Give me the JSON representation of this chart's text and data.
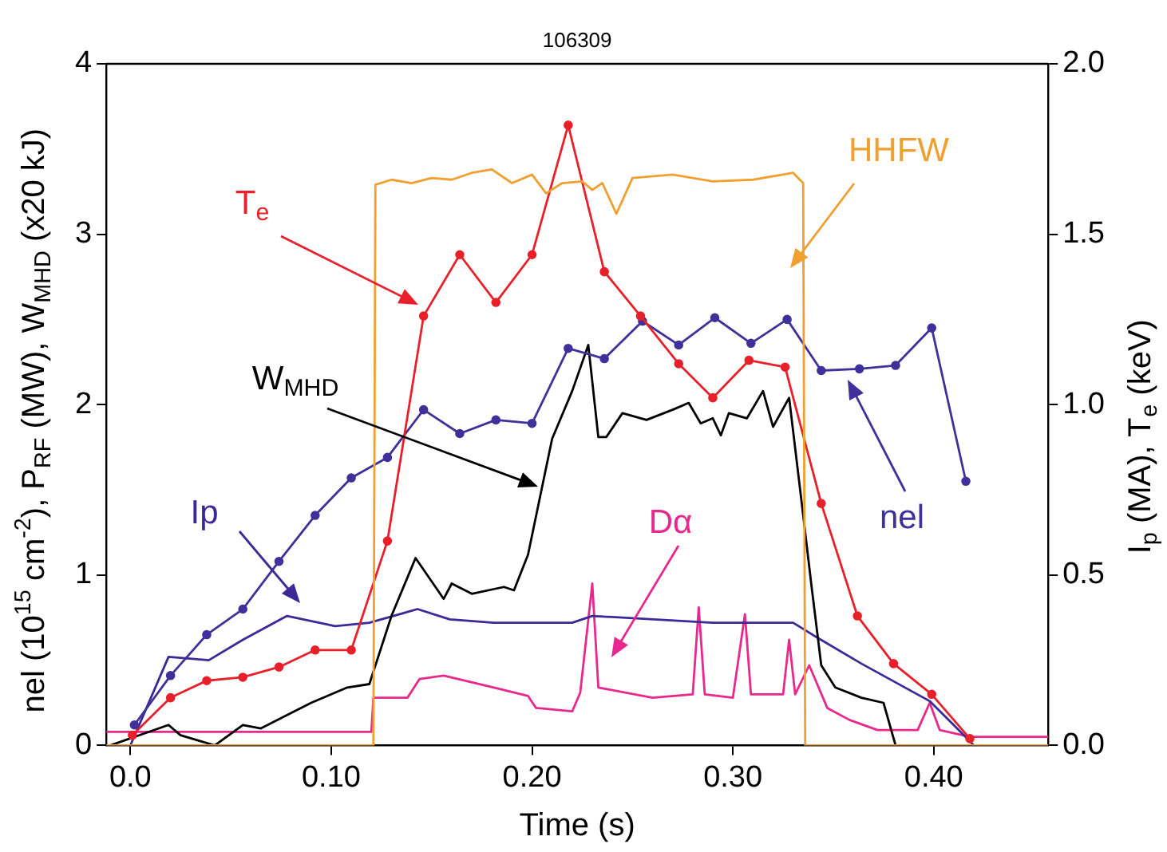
{
  "chart_data": {
    "type": "line",
    "title": "106309",
    "xlabel": "Time (s)",
    "ylabel": "nel (10$^{15}$ cm$^{-2}$), P$_{RF}$ (MW), W$_{MHD}$ (x20 kJ)",
    "y2label": "I$_{p}$ (MA), T$_{e}$ (keV)",
    "xlim": [
      -0.012,
      0.457
    ],
    "xticks": [
      {
        "value": 0,
        "label": "0.0"
      },
      {
        "value": 0.1,
        "label": "0.10"
      },
      {
        "value": 0.2,
        "label": "0.20"
      },
      {
        "value": 0.3,
        "label": "0.30"
      },
      {
        "value": 0.4,
        "label": "0.40"
      }
    ],
    "ylim": [
      0,
      4
    ],
    "yticks": [
      0,
      1,
      2,
      3,
      4
    ],
    "y2lim": [
      0,
      2
    ],
    "y2ticks": [
      {
        "value": 0,
        "label": "0.0"
      },
      {
        "value": 0.5,
        "label": "0.5"
      },
      {
        "value": 1,
        "label": "1.0"
      },
      {
        "value": 1.5,
        "label": "1.5"
      },
      {
        "value": 2,
        "label": "2.0"
      }
    ],
    "grid": false,
    "legend": false,
    "series": [
      {
        "name": "HHFW",
        "color": "#f0a030",
        "marker": "none",
        "x": [
          -0.012,
          0.121,
          0.122,
          0.13,
          0.14,
          0.15,
          0.16,
          0.17,
          0.18,
          0.19,
          0.2,
          0.207,
          0.215,
          0.225,
          0.23,
          0.235,
          0.242,
          0.25,
          0.27,
          0.29,
          0.31,
          0.33,
          0.335,
          0.336,
          0.457
        ],
        "values": [
          0,
          0,
          3.29,
          3.32,
          3.3,
          3.33,
          3.32,
          3.36,
          3.38,
          3.3,
          3.35,
          3.24,
          3.3,
          3.31,
          3.26,
          3.3,
          3.12,
          3.33,
          3.35,
          3.31,
          3.32,
          3.36,
          3.3,
          0,
          0
        ]
      },
      {
        "name": "T$_{e}$",
        "color": "#e8202a",
        "marker": "circle",
        "axis": "y2",
        "x": [
          0.001,
          0.02,
          0.038,
          0.056,
          0.074,
          0.092,
          0.11,
          0.128,
          0.146,
          0.164,
          0.182,
          0.2,
          0.218,
          0.236,
          0.254,
          0.273,
          0.29,
          0.308,
          0.326,
          0.344,
          0.362,
          0.38,
          0.399,
          0.418
        ],
        "values": [
          0.03,
          0.14,
          0.19,
          0.2,
          0.23,
          0.28,
          0.28,
          0.6,
          1.26,
          1.44,
          1.3,
          1.44,
          1.82,
          1.39,
          1.26,
          1.12,
          1.02,
          1.13,
          1.11,
          0.71,
          0.38,
          0.24,
          0.15,
          0.02
        ]
      },
      {
        "name": "nel",
        "color": "#40309a",
        "marker": "circle",
        "x": [
          0.002,
          0.02,
          0.038,
          0.056,
          0.074,
          0.092,
          0.11,
          0.128,
          0.146,
          0.164,
          0.182,
          0.2,
          0.218,
          0.236,
          0.255,
          0.273,
          0.291,
          0.309,
          0.327,
          0.344,
          0.363,
          0.381,
          0.399,
          0.416
        ],
        "values": [
          0.12,
          0.41,
          0.65,
          0.8,
          1.08,
          1.35,
          1.57,
          1.69,
          1.97,
          1.83,
          1.91,
          1.89,
          2.33,
          2.27,
          2.49,
          2.35,
          2.51,
          2.36,
          2.5,
          2.2,
          2.21,
          2.23,
          2.45,
          1.55
        ]
      },
      {
        "name": "W$_{MHD}$",
        "color": "#000000",
        "marker": "none",
        "x": [
          -0.01,
          0.019,
          0.025,
          0.042,
          0.056,
          0.065,
          0.09,
          0.108,
          0.119,
          0.13,
          0.142,
          0.156,
          0.16,
          0.17,
          0.186,
          0.191,
          0.198,
          0.21,
          0.22,
          0.228,
          0.233,
          0.237,
          0.245,
          0.257,
          0.27,
          0.278,
          0.284,
          0.29,
          0.294,
          0.298,
          0.307,
          0.315,
          0.32,
          0.328,
          0.334,
          0.339,
          0.344,
          0.351,
          0.364,
          0.375,
          0.381,
          0.4
        ],
        "values": [
          0,
          0.12,
          0.06,
          0,
          0.12,
          0.1,
          0.25,
          0.34,
          0.36,
          0.76,
          1.1,
          0.86,
          0.95,
          0.89,
          0.93,
          0.91,
          1.12,
          1.8,
          2.08,
          2.35,
          1.81,
          1.81,
          1.95,
          1.91,
          1.97,
          2.01,
          1.89,
          1.92,
          1.82,
          1.95,
          1.92,
          2.08,
          1.87,
          2.04,
          1.45,
          0.95,
          0.47,
          0.34,
          0.28,
          0.25,
          0,
          0
        ]
      },
      {
        "name": "Ip",
        "color": "#3c2896",
        "marker": "none",
        "axis": "y2",
        "x": [
          -0.01,
          0,
          0.019,
          0.039,
          0.056,
          0.078,
          0.102,
          0.119,
          0.143,
          0.159,
          0.181,
          0.22,
          0.23,
          0.29,
          0.33,
          0.341,
          0.364,
          0.398,
          0.415,
          0.42,
          0.457
        ],
        "values": [
          0,
          0,
          0.26,
          0.25,
          0.31,
          0.38,
          0.35,
          0.36,
          0.4,
          0.37,
          0.36,
          0.36,
          0.38,
          0.36,
          0.36,
          0.32,
          0.24,
          0.13,
          0.03,
          0,
          0
        ]
      },
      {
        "name": "Dα",
        "color": "#e8288c",
        "marker": "none",
        "x": [
          -0.012,
          0.12,
          0.121,
          0.138,
          0.144,
          0.156,
          0.181,
          0.198,
          0.202,
          0.22,
          0.224,
          0.23,
          0.233,
          0.26,
          0.28,
          0.283,
          0.286,
          0.3,
          0.306,
          0.309,
          0.325,
          0.328,
          0.331,
          0.338,
          0.347,
          0.358,
          0.372,
          0.392,
          0.398,
          0.403,
          0.418,
          0.457
        ],
        "values": [
          0.08,
          0.08,
          0.28,
          0.28,
          0.39,
          0.41,
          0.34,
          0.29,
          0.22,
          0.2,
          0.31,
          0.95,
          0.34,
          0.28,
          0.3,
          0.81,
          0.3,
          0.28,
          0.77,
          0.3,
          0.3,
          0.62,
          0.3,
          0.47,
          0.22,
          0.15,
          0.09,
          0.09,
          0.25,
          0.09,
          0.05,
          0.05
        ]
      }
    ]
  }
}
